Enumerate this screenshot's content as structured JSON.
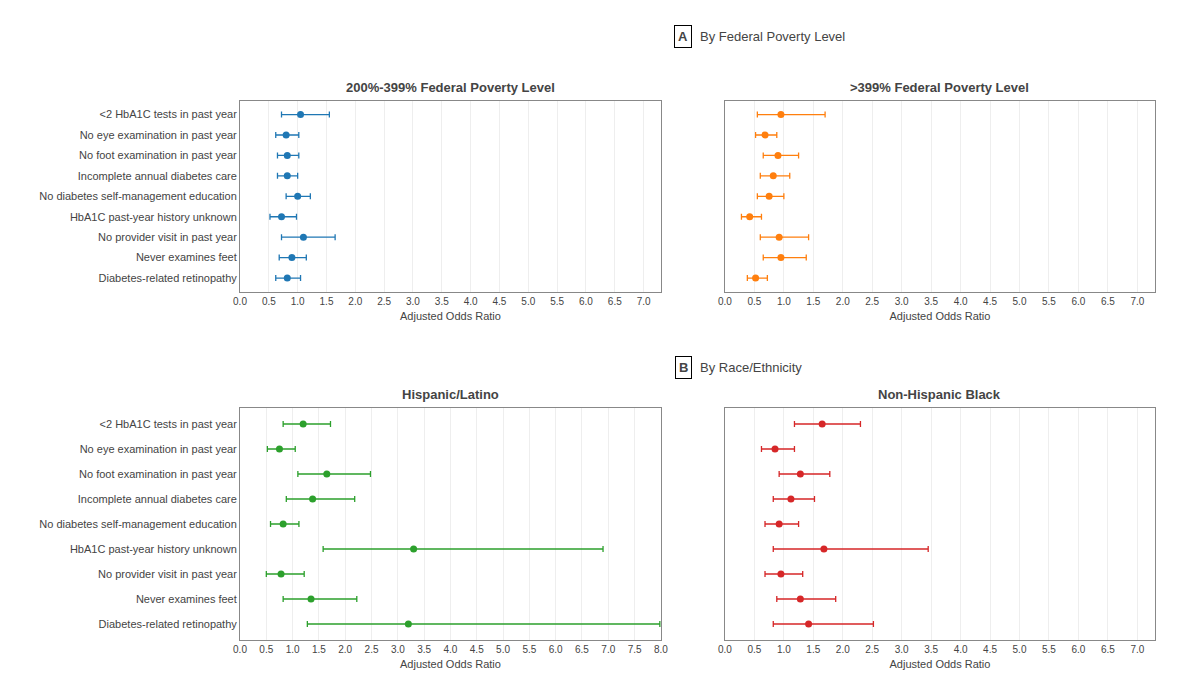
{
  "chart_data": [
    {
      "type": "scatter",
      "title": "200%-399% Federal Poverty Level",
      "xlabel": "Adjusted Odds Ratio",
      "annotations": [
        "A",
        "By Federal Poverty Level"
      ],
      "categories": [
        "<2 HbA1C tests in past year",
        "No eye examination in past year",
        "No foot examination in past year",
        "Incomplete annual diabetes care",
        "No diabetes self-management education",
        "HbA1C past-year history unknown",
        "No provider visit in past year",
        "Never examines feet",
        "Diabetes-related retinopathy"
      ],
      "values": [
        1.05,
        0.8,
        0.82,
        0.82,
        1.0,
        0.72,
        1.1,
        0.9,
        0.82
      ],
      "lower": [
        0.72,
        0.62,
        0.65,
        0.65,
        0.8,
        0.52,
        0.72,
        0.68,
        0.62
      ],
      "upper": [
        1.55,
        1.02,
        1.02,
        1.0,
        1.22,
        0.98,
        1.65,
        1.15,
        1.05
      ],
      "xlim": [
        0.0,
        7.3
      ],
      "xticks": [
        {
          "value": 0,
          "label": "0.0"
        },
        0.5,
        {
          "value": 1,
          "label": "1.0"
        },
        1.5,
        {
          "value": 2,
          "label": "2.0"
        },
        2.5,
        {
          "value": 3,
          "label": "3.0"
        },
        3.5,
        {
          "value": 4,
          "label": "4.0"
        },
        4.5,
        {
          "value": 5,
          "label": "5.0"
        },
        5.5,
        {
          "value": 6,
          "label": "6.0"
        },
        6.5,
        {
          "value": 7,
          "label": "7.0"
        }
      ],
      "grid": true
    },
    {
      "type": "scatter",
      "title": ">399% Federal Poverty Level",
      "xlabel": "Adjusted Odds Ratio",
      "categories": [
        "<2 HbA1C tests in past year",
        "No eye examination in past year",
        "No foot examination in past year",
        "Incomplete annual diabetes care",
        "No diabetes self-management education",
        "HbA1C past-year history unknown",
        "No provider visit in past year",
        "Never examines feet",
        "Diabetes-related retinopathy"
      ],
      "values": [
        0.95,
        0.68,
        0.9,
        0.82,
        0.75,
        0.42,
        0.92,
        0.95,
        0.52
      ],
      "lower": [
        0.55,
        0.52,
        0.65,
        0.6,
        0.55,
        0.28,
        0.6,
        0.65,
        0.38
      ],
      "upper": [
        1.7,
        0.88,
        1.25,
        1.1,
        1.0,
        0.62,
        1.42,
        1.38,
        0.72
      ],
      "xlim": [
        0.0,
        7.3
      ],
      "xticks": [
        {
          "value": 0,
          "label": "0.0"
        },
        0.5,
        {
          "value": 1,
          "label": "1.0"
        },
        1.5,
        {
          "value": 2,
          "label": "2.0"
        },
        2.5,
        {
          "value": 3,
          "label": "3.0"
        },
        3.5,
        {
          "value": 4,
          "label": "4.0"
        },
        4.5,
        {
          "value": 5,
          "label": "5.0"
        },
        5.5,
        {
          "value": 6,
          "label": "6.0"
        },
        6.5,
        {
          "value": 7,
          "label": "7.0"
        }
      ],
      "grid": true,
      "tick_labels": "x"
    },
    {
      "type": "scatter",
      "title": "Hispanic/Latino",
      "xlabel": "Adjusted Odds Ratio",
      "annotations": [
        "B",
        "By Race/Ethnicity"
      ],
      "categories": [
        "<2 HbA1C tests in past year",
        "No eye examination in past year",
        "No foot examination in past year",
        "Incomplete annual diabetes care",
        "No diabetes self-management education",
        "HbA1C past-year history unknown",
        "No provider visit in past year",
        "Never examines feet",
        "Diabetes-related retinopathy"
      ],
      "values": [
        1.2,
        0.75,
        1.65,
        1.38,
        0.82,
        3.3,
        0.78,
        1.35,
        3.2
      ],
      "lower": [
        0.82,
        0.52,
        1.1,
        0.88,
        0.58,
        1.58,
        0.5,
        0.82,
        1.28
      ],
      "upper": [
        1.72,
        1.05,
        2.48,
        2.18,
        1.12,
        6.9,
        1.22,
        2.22,
        7.98
      ],
      "xlim": [
        0.0,
        8.0
      ],
      "xticks": [
        {
          "value": 0,
          "label": "0.0"
        },
        0.5,
        {
          "value": 1,
          "label": "1.0"
        },
        1.5,
        {
          "value": 2,
          "label": "2.0"
        },
        2.5,
        {
          "value": 3,
          "label": "3.0"
        },
        3.5,
        {
          "value": 4,
          "label": "4.0"
        },
        4.5,
        {
          "value": 5,
          "label": "5.0"
        },
        5.5,
        {
          "value": 6,
          "label": "6.0"
        },
        6.5,
        {
          "value": 7,
          "label": "7.0"
        },
        7.5,
        {
          "value": 8,
          "label": "8.0"
        }
      ],
      "grid": true
    },
    {
      "type": "scatter",
      "title": "Non-Hispanic Black",
      "xlabel": "Adjusted Odds Ratio",
      "categories": [
        "<2 HbA1C tests in past year",
        "No eye examination in past year",
        "No foot examination in past year",
        "Incomplete annual diabetes care",
        "No diabetes self-management education",
        "HbA1C past-year history unknown",
        "No provider visit in past year",
        "Never examines feet",
        "Diabetes-related retinopathy"
      ],
      "values": [
        1.65,
        0.85,
        1.28,
        1.12,
        0.92,
        1.68,
        0.95,
        1.28,
        1.42
      ],
      "lower": [
        1.18,
        0.62,
        0.92,
        0.82,
        0.68,
        0.82,
        0.68,
        0.88,
        0.82
      ],
      "upper": [
        2.3,
        1.18,
        1.78,
        1.52,
        1.25,
        3.45,
        1.32,
        1.88,
        2.52
      ],
      "xlim": [
        0.0,
        7.3
      ],
      "xticks": [
        {
          "value": 0,
          "label": "0.0"
        },
        0.5,
        {
          "value": 1,
          "label": "1.0"
        },
        1.5,
        {
          "value": 2,
          "label": "2.0"
        },
        2.5,
        {
          "value": 3,
          "label": "3.0"
        },
        3.5,
        {
          "value": 4,
          "label": "4.0"
        },
        4.5,
        {
          "value": 5,
          "label": "5.0"
        },
        5.5,
        {
          "value": 6,
          "label": "6.0"
        },
        6.5,
        {
          "value": 7,
          "label": "7.0"
        }
      ],
      "grid": true,
      "tick_labels": "x"
    }
  ]
}
